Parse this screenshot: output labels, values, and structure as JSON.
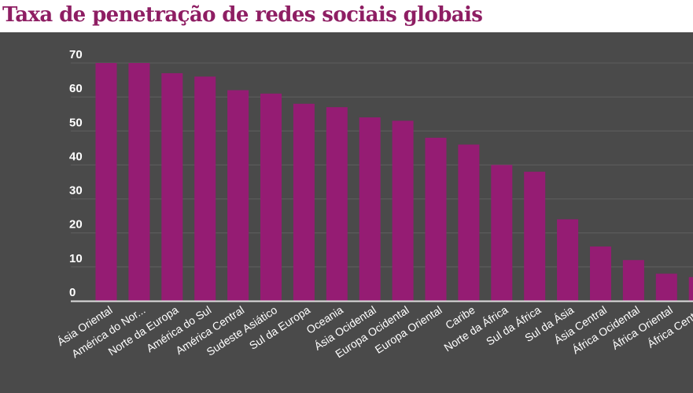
{
  "chart_data": {
    "type": "bar",
    "title": "Taxa de penetração de redes sociais globais",
    "xlabel": "",
    "ylabel": "",
    "ylim": [
      0,
      70
    ],
    "yticks": [
      0,
      10,
      20,
      30,
      40,
      50,
      60,
      70
    ],
    "grid": true,
    "categories": [
      "Ásia Oriental",
      "América do Nor...",
      "Norte da Europa",
      "América do Sul",
      "América Central",
      "Sudeste Asiático",
      "Sul da Europa",
      "Oceania",
      "Ásia Ocidental",
      "Europa Ocidental",
      "Europa Oriental",
      "Caribe",
      "Norte da África",
      "Sul da África",
      "Sul da Ásia",
      "Ásia Central",
      "África Ocidental",
      "África Oriental",
      "África Central"
    ],
    "values": [
      70,
      70,
      67,
      66,
      62,
      61,
      58,
      57,
      54,
      53,
      48,
      46,
      40,
      38,
      24,
      16,
      12,
      8,
      7
    ],
    "colors": {
      "bar": "#951c73",
      "background": "#4a4a4a",
      "grid": "#5f5f5f",
      "axis": "#dddddd",
      "text": "#ffffff",
      "title": "#8e1e63"
    }
  }
}
